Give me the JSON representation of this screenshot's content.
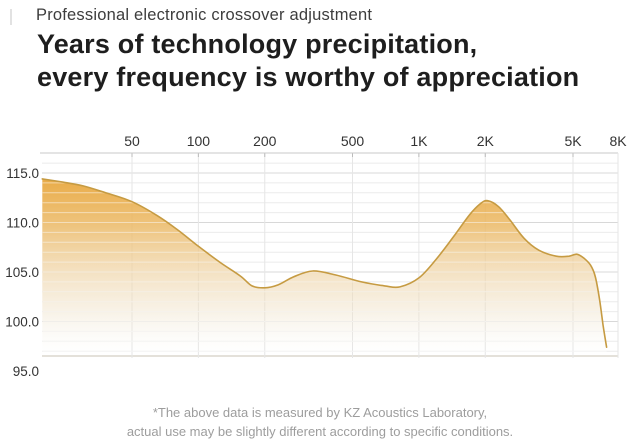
{
  "header": {
    "eyebrow": "Professional electronic crossover adjustment",
    "title_line1": "Years of technology precipitation,",
    "title_line2": "every frequency is worthy of appreciation"
  },
  "footnote": {
    "line1": "*The above data is measured by KZ Acoustics Laboratory,",
    "line2": "actual use may be slightly different according to specific conditions."
  },
  "chart_data": {
    "type": "area",
    "x_scale": "log",
    "grid": true,
    "x_ticks": [
      {
        "label": "50",
        "hz": 50
      },
      {
        "label": "100",
        "hz": 100
      },
      {
        "label": "200",
        "hz": 200
      },
      {
        "label": "500",
        "hz": 500
      },
      {
        "label": "1K",
        "hz": 1000
      },
      {
        "label": "2K",
        "hz": 2000
      },
      {
        "label": "5K",
        "hz": 5000
      },
      {
        "label": "8K",
        "hz": 8000
      }
    ],
    "y_ticks": [
      "115.0",
      "110.0",
      "105.0",
      "100.0",
      "95.0"
    ],
    "ylim": [
      95,
      117
    ],
    "series": [
      {
        "name": "frequency-response-db",
        "points": [
          [
            19.6,
            114.4
          ],
          [
            24,
            114.1
          ],
          [
            30,
            113.7
          ],
          [
            38,
            113.0
          ],
          [
            50,
            112.1
          ],
          [
            65,
            110.7
          ],
          [
            80,
            109.3
          ],
          [
            100,
            107.6
          ],
          [
            125,
            106.0
          ],
          [
            155,
            104.6
          ],
          [
            175,
            103.6
          ],
          [
            200,
            103.4
          ],
          [
            230,
            103.7
          ],
          [
            270,
            104.5
          ],
          [
            330,
            105.1
          ],
          [
            420,
            104.7
          ],
          [
            550,
            104.0
          ],
          [
            700,
            103.6
          ],
          [
            820,
            103.5
          ],
          [
            1000,
            104.4
          ],
          [
            1200,
            106.3
          ],
          [
            1450,
            108.7
          ],
          [
            1700,
            110.8
          ],
          [
            1900,
            111.9
          ],
          [
            2050,
            112.2
          ],
          [
            2300,
            111.6
          ],
          [
            2600,
            110.2
          ],
          [
            3000,
            108.4
          ],
          [
            3500,
            107.2
          ],
          [
            4200,
            106.6
          ],
          [
            4800,
            106.6
          ],
          [
            5200,
            106.8
          ],
          [
            5600,
            106.4
          ],
          [
            6000,
            105.7
          ],
          [
            6300,
            104.6
          ],
          [
            6600,
            102.2
          ],
          [
            6850,
            99.6
          ],
          [
            7100,
            97.4
          ]
        ]
      }
    ],
    "colors": {
      "fill_top": "#E8A436",
      "fill_mid": "#EFD3A4",
      "fill_bottom_fade": "#F2EFE6",
      "stroke": "#C69B42",
      "grid_minor": "#ebebeb",
      "grid_major": "#d8d8d8",
      "grid_vertical": "#e6e6e6",
      "axis_line": "#c9c9c9",
      "tick_text": "#333333"
    }
  }
}
